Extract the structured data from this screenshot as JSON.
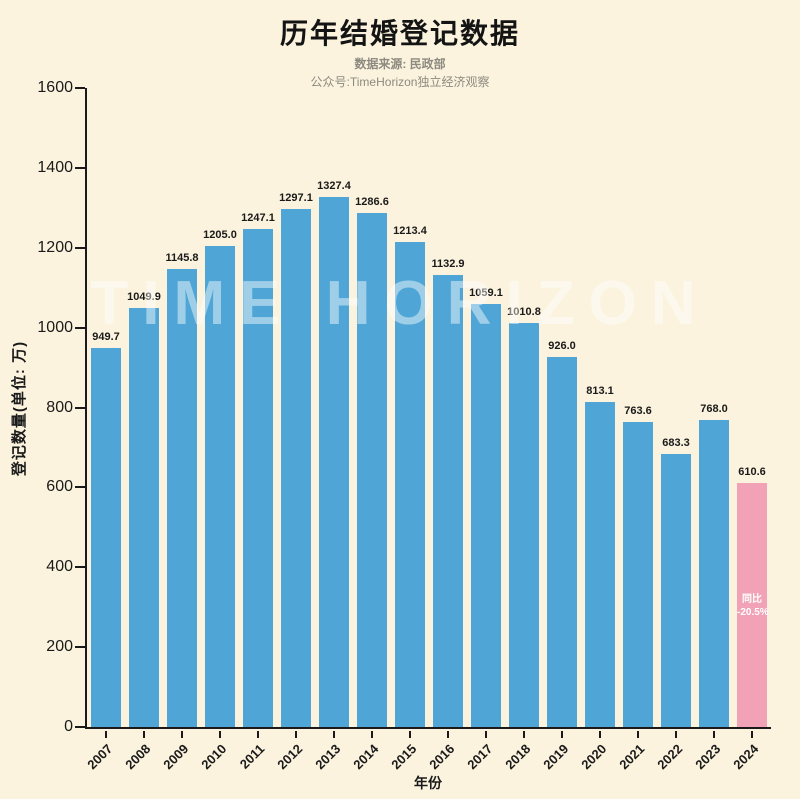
{
  "page": {
    "background": "#FBF3DE"
  },
  "chart_data": {
    "type": "bar",
    "title": "历年结婚登记数据",
    "subtitle_lines": [
      "数据来源: 民政部",
      "公众号:TimeHorizon独立经济观察"
    ],
    "xlabel": "年份",
    "ylabel": "登记数量(单位: 万)",
    "ylim": [
      0,
      1600
    ],
    "yticks": [
      0,
      200,
      400,
      600,
      800,
      1000,
      1200,
      1400,
      1600
    ],
    "categories": [
      "2007",
      "2008",
      "2009",
      "2010",
      "2011",
      "2012",
      "2013",
      "2014",
      "2015",
      "2016",
      "2017",
      "2018",
      "2019",
      "2020",
      "2021",
      "2022",
      "2023",
      "2024"
    ],
    "values": [
      949.7,
      1049.9,
      1145.8,
      1205.0,
      1247.1,
      1297.1,
      1327.4,
      1286.6,
      1213.4,
      1132.9,
      1059.1,
      1010.8,
      926.0,
      813.1,
      763.6,
      683.3,
      768.0,
      610.6
    ],
    "colors": {
      "bar_default": "#4FA6D6",
      "bar_highlight": "#F2A2B6",
      "axis": "#1a1a1a",
      "background": "#FBF3DE"
    },
    "highlight_index": 17,
    "annotation": {
      "index": 17,
      "lines": [
        "同比",
        "-20.5%"
      ]
    },
    "watermark": "TIME HORIZON",
    "grid": false,
    "legend": null
  }
}
